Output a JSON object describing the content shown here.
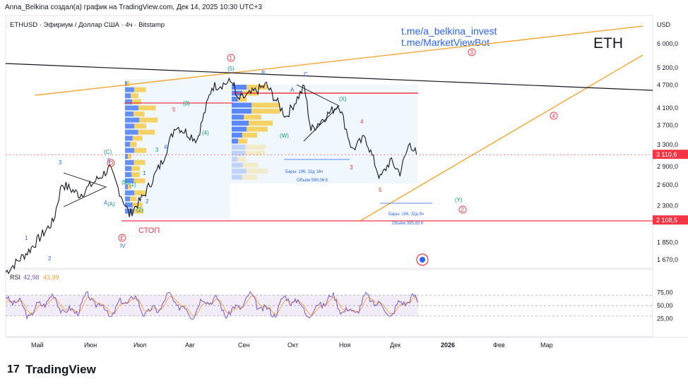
{
  "header": {
    "attribution": "Anna_Belkina создал(а) график на TradingView.com, Дек 14, 2025 10:30 UTC+3",
    "symbol_line": "ETHUSD · Эфириум / Доллар США · 4ч · Bitstamp",
    "watermark": "ETH",
    "link1": "t.me/a_belkina_invest",
    "link2": "t.me/MarketViewBot",
    "currency": "USD"
  },
  "brand": {
    "logo": "17",
    "name": "TradingView"
  },
  "chart_data": {
    "type": "line",
    "y_axis": {
      "scale": "log",
      "ticks": [
        "6 000,0",
        "5 200,0",
        "4 700,0",
        "4 100,0",
        "3 700,0",
        "3 300,0",
        "2 900,0",
        "2 600,0",
        "2 300,0",
        "1 850,0",
        "1 670,0"
      ],
      "tick_values": [
        6000,
        5200,
        4700,
        4100,
        3700,
        3300,
        2900,
        2600,
        2300,
        1850,
        1670
      ]
    },
    "x_axis": {
      "ticks": [
        "Май",
        "Июн",
        "Июл",
        "Авг",
        "Сен",
        "Окт",
        "Ноя",
        "Дек",
        "2026",
        "Фев",
        "Мар"
      ]
    },
    "price_labels": [
      {
        "text": "3 110,6",
        "value": 3110.6,
        "color": "#f23645"
      },
      {
        "text": "2 108,5",
        "value": 2108.5,
        "color": "#f23645"
      }
    ],
    "resistance_line_value": 4450,
    "stop_line_value": 2108.5,
    "stop_label": "СТОП",
    "series": [
      {
        "dates": [
          "2025-04-08",
          "2025-04-22",
          "2025-05-07",
          "2025-05-12",
          "2025-05-23",
          "2025-06-10",
          "2025-06-22",
          "2025-07-01",
          "2025-07-12",
          "2025-07-20",
          "2025-08-02",
          "2025-08-11",
          "2025-08-24",
          "2025-08-26",
          "2025-09-01",
          "2025-09-13",
          "2025-09-25",
          "2025-10-06",
          "2025-10-10",
          "2025-10-27",
          "2025-11-04",
          "2025-11-12",
          "2025-11-21",
          "2025-11-27",
          "2025-12-03",
          "2025-12-09",
          "2025-12-13"
        ],
        "values": [
          1550,
          1760,
          2100,
          2620,
          2450,
          2870,
          2180,
          2450,
          3000,
          3700,
          3400,
          4650,
          4800,
          4300,
          4400,
          4700,
          3900,
          4650,
          3600,
          4200,
          3200,
          3450,
          2700,
          3000,
          2800,
          3350,
          3110
        ]
      }
    ],
    "rsi": {
      "label": "RSI",
      "value1": "42,98",
      "value2": "43,99",
      "ticks": [
        "75,00",
        "50,00",
        "25,00"
      ],
      "tick_values": [
        75,
        50,
        25
      ],
      "band": [
        30,
        70
      ]
    },
    "wave_labels": [
      "1",
      "2",
      "3",
      "4",
      "5",
      "(A)",
      "(B)",
      "(C)",
      "(1)",
      "(2)",
      "(3)",
      "(4)",
      "(5)",
      "A",
      "B",
      "C",
      "(W)",
      "(X)",
      "(Y)",
      "IV",
      "1",
      "2",
      "3",
      "4",
      "5",
      "3",
      "4",
      "5"
    ],
    "circled_labels": [
      "1",
      "2",
      "3",
      "4",
      "E",
      "D"
    ],
    "measure_boxes": [
      {
        "line1": "Бары: 196, 32д 16ч",
        "line2": "Объём 599,06 K"
      },
      {
        "line1": "Бары: 194, 32д 8ч",
        "line2": "Объём 395,83 K"
      }
    ],
    "colors": {
      "price_line": "#131722",
      "up_trend": "#f7a531",
      "down_trend": "#131722",
      "red": "#f23645",
      "blue": "#2962ff",
      "green": "#089981",
      "rsi_line": "#7e57c2",
      "rsi_fast": "#f7a531",
      "box": "#e3f2fd"
    },
    "grid": false
  }
}
